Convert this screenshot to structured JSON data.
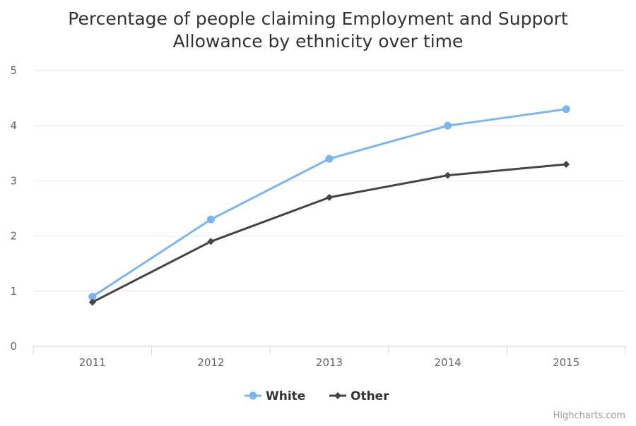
{
  "chart_data": {
    "type": "line",
    "title_lines": [
      "Percentage of people claiming Employment and Support",
      "Allowance by ethnicity over time"
    ],
    "categories": [
      "2011",
      "2012",
      "2013",
      "2014",
      "2015"
    ],
    "yticks": [
      0,
      1,
      2,
      3,
      4,
      5
    ],
    "ylim": [
      0,
      5
    ],
    "grid": true,
    "legend_position": "bottom-center",
    "series": [
      {
        "name": "White",
        "values": [
          0.9,
          2.3,
          3.4,
          4.0,
          4.3
        ],
        "color": "#7cb5ec",
        "marker": "circle"
      },
      {
        "name": "Other",
        "values": [
          0.8,
          1.9,
          2.7,
          3.1,
          3.3
        ],
        "color": "#434348",
        "marker": "diamond"
      }
    ]
  },
  "credits": "Highcharts.com"
}
